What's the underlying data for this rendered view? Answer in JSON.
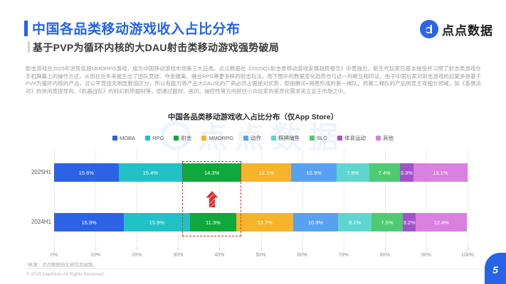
{
  "header": {
    "title": "中国各品类移动游戏收入占比分布",
    "subtitle": "基于PVP为循环内核的大DAU射击类移动游戏强势破局",
    "logo_text": "点点数据"
  },
  "intro_text": "射击游戏在2025年逆势反超MMORPG游戏，成为中国移动游戏市场第三大品类。点点数据在《2025Q1射击类移动游戏发展趋势报告》中曾提出，新生代玩家已基本接受并习惯了射击类游戏在手机屏幕上的操作方式，从而在近年来催生出了团队竞技、夺金撤离、融合RPG等更多样的射击玩法。而下图中的数据变化趋势也与这一判断互相印证。由于中国玩家对射击游戏的启蒙多是基于PVP为循环内核的产品，且公平竞技无明显数值区分，所以有能力将产品大DAU化的厂商必然占据绝对优势，即由腾讯+网易形成的第一梯队。而第二梯队的产品明显主攻细分领域，如《香肠派对》的休闲竞技导向，《机器战队》的科幻机甲题材等，即通过题材、画风、操控性等方向抓住小众玩家的差异化需求来立足于市场之中。",
  "chart_data": {
    "type": "bar",
    "variant": "horizontal-stacked",
    "title": "中国各品类移动游戏收入占比分布（仅App Store）",
    "categories": [
      "2025H1",
      "2024H1"
    ],
    "genres": [
      "MOBA",
      "RPG",
      "射击",
      "MMORPG",
      "动作",
      "棋牌捕鱼",
      "SLG",
      "体育运动",
      "其他"
    ],
    "colors": [
      "#2B62E6",
      "#22C1C6",
      "#0FA83C",
      "#F6B42B",
      "#57A2F0",
      "#5ED6CF",
      "#4ECB72",
      "#A253CC",
      "#D980E0"
    ],
    "series": [
      {
        "name": "2025H1",
        "values": [
          15.6,
          15.4,
          14.3,
          12.1,
          10.9,
          7.9,
          7.4,
          3.3,
          13.1
        ]
      },
      {
        "name": "2024H1",
        "values": [
          16.9,
          15.9,
          11.3,
          13.7,
          10.9,
          8.1,
          7.5,
          3.2,
          12.4
        ]
      }
    ],
    "x_ticks": [
      "0%",
      "10%",
      "20%",
      "30%",
      "40%",
      "50%",
      "60%",
      "70%",
      "80%",
      "90%",
      "100%"
    ],
    "xlim": [
      0,
      100
    ],
    "grid": true,
    "legend_position": "top",
    "highlight": {
      "genre": "射击",
      "marker": "red-dashed-box",
      "arrow": "up"
    }
  },
  "watermark_text": "点点数据",
  "footer": {
    "source_note": "*来源：点点数据自主研究及绘制。",
    "copyright": "© 2025 DianDian.All Rights Reserved."
  },
  "page_number": "5"
}
